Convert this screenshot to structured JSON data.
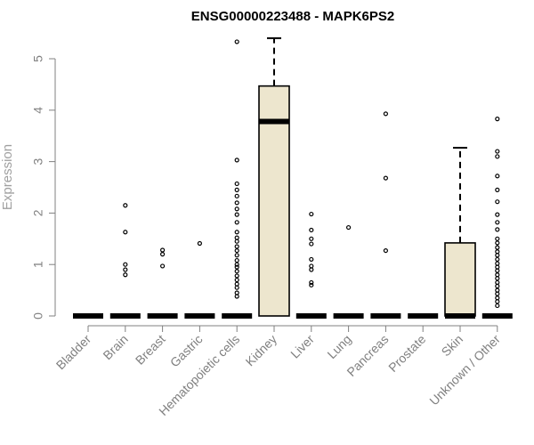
{
  "chart_data": {
    "type": "boxplot",
    "title": "ENSG00000223488 - MAPK6PS2",
    "ylabel": "Expression",
    "xlabel": "",
    "ylim": [
      0,
      5
    ],
    "yticks": [
      0,
      1,
      2,
      3,
      4,
      5
    ],
    "box_fill": "#ede6ce",
    "categories": [
      "Bladder",
      "Brain",
      "Breast",
      "Gastric",
      "Hematopoietic cells",
      "Kidney",
      "Liver",
      "Lung",
      "Pancreas",
      "Prostate",
      "Skin",
      "Unknown / Other"
    ],
    "boxes": [
      {
        "category": "Bladder",
        "q1": 0,
        "median": 0,
        "q3": 0,
        "whisker_high": 0,
        "outliers": []
      },
      {
        "category": "Brain",
        "q1": 0,
        "median": 0,
        "q3": 0,
        "whisker_high": 0,
        "outliers": [
          0.8,
          0.9,
          1.0,
          1.63,
          2.15
        ]
      },
      {
        "category": "Breast",
        "q1": 0,
        "median": 0,
        "q3": 0,
        "whisker_high": 0,
        "outliers": [
          0.97,
          1.2,
          1.28
        ]
      },
      {
        "category": "Gastric",
        "q1": 0,
        "median": 0,
        "q3": 0,
        "whisker_high": 0,
        "outliers": [
          1.41
        ]
      },
      {
        "category": "Hematopoietic cells",
        "q1": 0,
        "median": 0,
        "q3": 0,
        "whisker_high": 0,
        "outliers": [
          0.38,
          0.45,
          0.55,
          0.62,
          0.7,
          0.78,
          0.87,
          0.95,
          1.0,
          1.08,
          1.18,
          1.27,
          1.35,
          1.45,
          1.52,
          1.63,
          1.82,
          1.97,
          2.08,
          2.2,
          2.33,
          2.45,
          2.57,
          3.03,
          5.33
        ]
      },
      {
        "category": "Kidney",
        "q1": 0,
        "median": 3.78,
        "q3": 4.47,
        "whisker_high": 5.4,
        "outliers": []
      },
      {
        "category": "Liver",
        "q1": 0,
        "median": 0,
        "q3": 0,
        "whisker_high": 0,
        "outliers": [
          0.6,
          0.65,
          0.9,
          0.97,
          1.1,
          1.4,
          1.5,
          1.67,
          1.98
        ]
      },
      {
        "category": "Lung",
        "q1": 0,
        "median": 0,
        "q3": 0,
        "whisker_high": 0,
        "outliers": [
          1.72
        ]
      },
      {
        "category": "Pancreas",
        "q1": 0,
        "median": 0,
        "q3": 0,
        "whisker_high": 0,
        "outliers": [
          1.27,
          2.68,
          3.93
        ]
      },
      {
        "category": "Prostate",
        "q1": 0,
        "median": 0,
        "q3": 0,
        "whisker_high": 0,
        "outliers": []
      },
      {
        "category": "Skin",
        "q1": 0,
        "median": 0,
        "q3": 1.42,
        "whisker_high": 3.27,
        "outliers": []
      },
      {
        "category": "Unknown / Other",
        "q1": 0,
        "median": 0,
        "q3": 0,
        "whisker_high": 0,
        "outliers": [
          0.2,
          0.28,
          0.35,
          0.43,
          0.5,
          0.58,
          0.65,
          0.73,
          0.8,
          0.88,
          0.95,
          1.02,
          1.1,
          1.18,
          1.25,
          1.33,
          1.42,
          1.5,
          1.68,
          1.82,
          1.97,
          2.22,
          2.45,
          2.72,
          3.1,
          3.2,
          3.83
        ]
      }
    ]
  }
}
